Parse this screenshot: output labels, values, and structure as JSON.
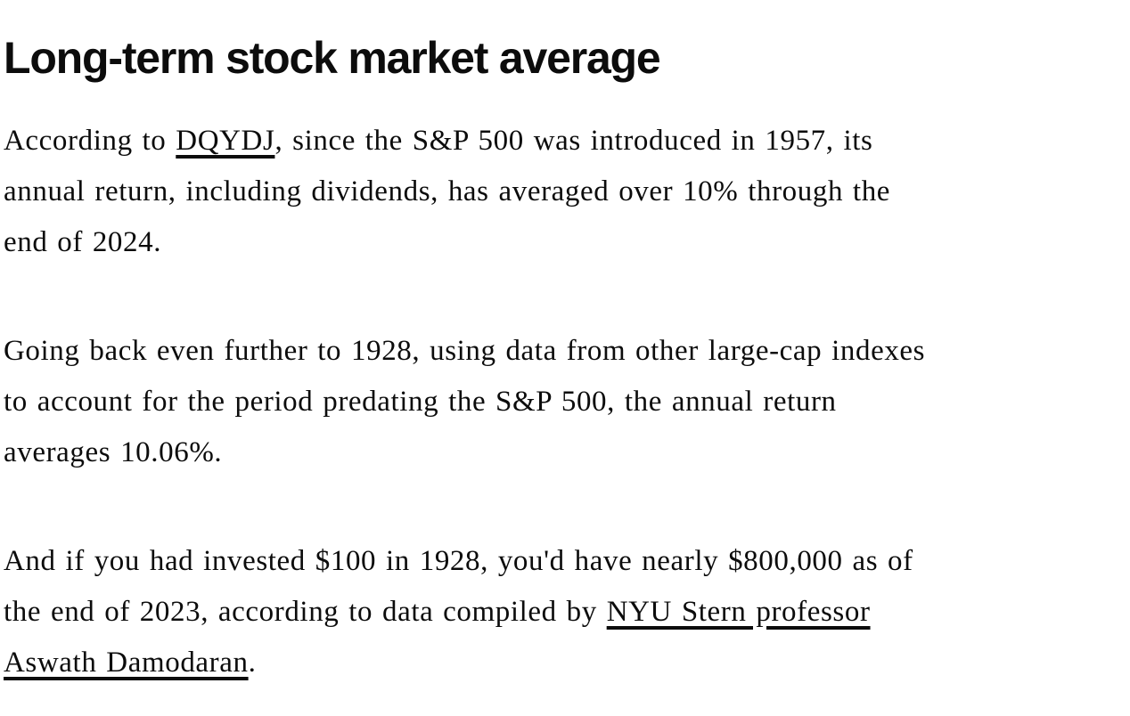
{
  "page": {
    "background_color": "#ffffff",
    "text_color": "#0c0c0c",
    "link_underline_color": "#0c0c0c"
  },
  "article": {
    "heading": "Long-term stock market average",
    "paragraphs": [
      {
        "segments": [
          {
            "text": "According to "
          },
          {
            "text": "DQYDJ",
            "link": true
          },
          {
            "text": ", since the S&P 500 was introduced in 1957, its\nannual return, including dividends, has averaged over 10% through the\nend of 2024."
          }
        ]
      },
      {
        "segments": [
          {
            "text": "Going back even further to 1928, using data from other large-cap indexes\nto account for the period predating the S&P 500, the annual return\naverages 10.06%."
          }
        ]
      },
      {
        "segments": [
          {
            "text": "And if you had invested $100 in 1928, you'd have nearly $800,000 as of\nthe end of 2023, according to data compiled by "
          },
          {
            "text": "NYU Stern professor\nAswath Damodaran",
            "link": true
          },
          {
            "text": "."
          }
        ]
      }
    ]
  }
}
